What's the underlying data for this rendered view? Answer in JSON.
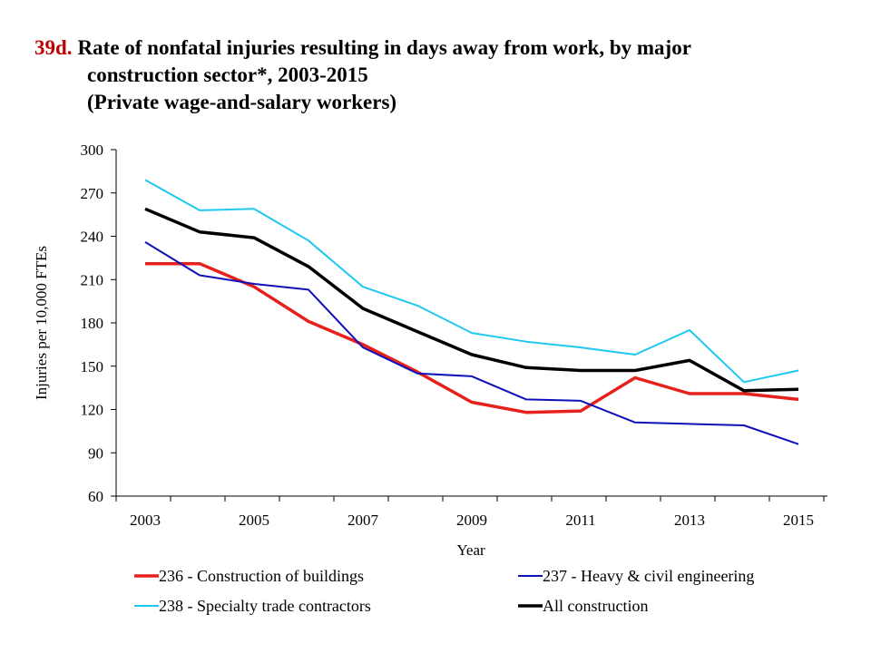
{
  "header": {
    "number": "39d.",
    "line1": "Rate of nonfatal injuries resulting in days away from work, by major",
    "line2": "construction sector*, 2003-2015",
    "line3": "(Private wage-and-salary workers)"
  },
  "chart_data": {
    "type": "line",
    "title": "Rate of nonfatal injuries resulting in days away from work, by major construction sector*, 2003-2015 (Private wage-and-salary workers)",
    "xlabel": "Year",
    "ylabel": "Injuries per 10,000 FTEs",
    "ylim": [
      60,
      300
    ],
    "yticks": [
      60,
      90,
      120,
      150,
      180,
      210,
      240,
      270,
      300
    ],
    "xticks": [
      2003,
      2005,
      2007,
      2009,
      2011,
      2013,
      2015
    ],
    "x": [
      2003,
      2004,
      2005,
      2006,
      2007,
      2008,
      2009,
      2010,
      2011,
      2012,
      2013,
      2014,
      2015
    ],
    "grid": false,
    "legend_position": "bottom",
    "series": [
      {
        "name": "236 - Construction of buildings",
        "color": "#e8201c",
        "values": [
          221,
          221,
          205,
          181,
          165,
          146,
          125,
          118,
          119,
          142,
          131,
          131,
          127
        ]
      },
      {
        "name": "237 - Heavy & civil engineering",
        "color": "#1010b8",
        "values": [
          236,
          213,
          207,
          203,
          163,
          145,
          143,
          127,
          126,
          111,
          110,
          109,
          96
        ]
      },
      {
        "name": "238 - Specialty trade contractors",
        "color": "#1ec8f0",
        "values": [
          279,
          258,
          259,
          237,
          205,
          192,
          173,
          167,
          163,
          158,
          175,
          139,
          147
        ]
      },
      {
        "name": "All construction",
        "color": "#000000",
        "values": [
          259,
          243,
          239,
          219,
          190,
          174,
          158,
          149,
          147,
          147,
          154,
          133,
          134
        ]
      }
    ]
  }
}
